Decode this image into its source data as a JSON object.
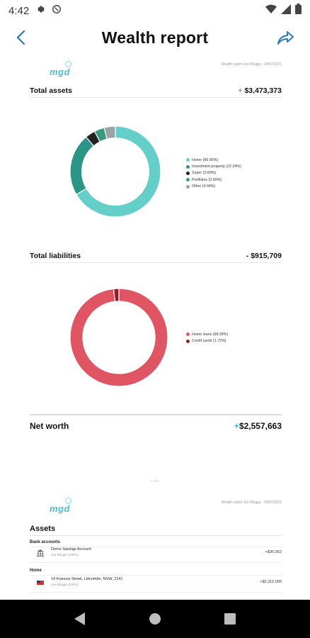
{
  "status_bar": {
    "time": "4:42"
  },
  "header": {
    "title": "Wealth report"
  },
  "page1": {
    "logo": "mgd",
    "note": "Wealth report Joe Bloggs - 29/07/2021",
    "total_assets": {
      "label": "Total assets",
      "value": "$3,473,373",
      "sign": "+"
    },
    "total_liabilities": {
      "label": "Total liabilities",
      "value": "- $915,709"
    },
    "net_worth": {
      "label": "Net worth",
      "value": "$2,557,663",
      "sign": "+"
    }
  },
  "page_number": "1 of 3",
  "page2": {
    "logo": "mgd",
    "note": "Wealth report Joe Bloggs - 29/07/2021",
    "assets_title": "Assets",
    "groups": [
      {
        "label": "Bank accounts",
        "rows": [
          {
            "name": "Demo Savings Account",
            "owner": "Joe Bloggs (100%)",
            "value": "+$30,952"
          }
        ]
      },
      {
        "label": "Home",
        "rows": [
          {
            "name": "14 Frances Street, Lidcombe, NSW, 2141",
            "owner": "Joe Bloggs (100%)",
            "value": "+$2,312,000"
          }
        ]
      }
    ]
  },
  "colors": {
    "teal": "#64cfc9",
    "dark_teal": "#2b9588",
    "black": "#222222",
    "green": "#3a9a7f",
    "grey": "#9aa3a6",
    "red": "#e05563",
    "dark_red": "#8e1f27",
    "accent": "#3fb6c6"
  },
  "chart_data": [
    {
      "type": "pie",
      "title": "Total assets",
      "categories": [
        "Home",
        "Investment property",
        "Super",
        "Portfolios",
        "Other"
      ],
      "values": [
        66.56,
        22.24,
        3.6,
        3.6,
        4.0
      ],
      "legend": [
        "Home (66.56%)",
        "Investment property (22.24%)",
        "Super (3.60%)",
        "Portfolios (3.60%)",
        "Other (4.00%)"
      ],
      "colors": [
        "#64cfc9",
        "#2b9588",
        "#222222",
        "#3a9a7f",
        "#9aa3a6"
      ],
      "legend_position": "right"
    },
    {
      "type": "pie",
      "title": "Total liabilities",
      "categories": [
        "Home loans",
        "Credit cards"
      ],
      "values": [
        98.28,
        1.72
      ],
      "legend": [
        "Home loans (98.28%)",
        "Credit cards (1.72%)"
      ],
      "colors": [
        "#e05563",
        "#8e1f27"
      ],
      "legend_position": "right"
    }
  ]
}
